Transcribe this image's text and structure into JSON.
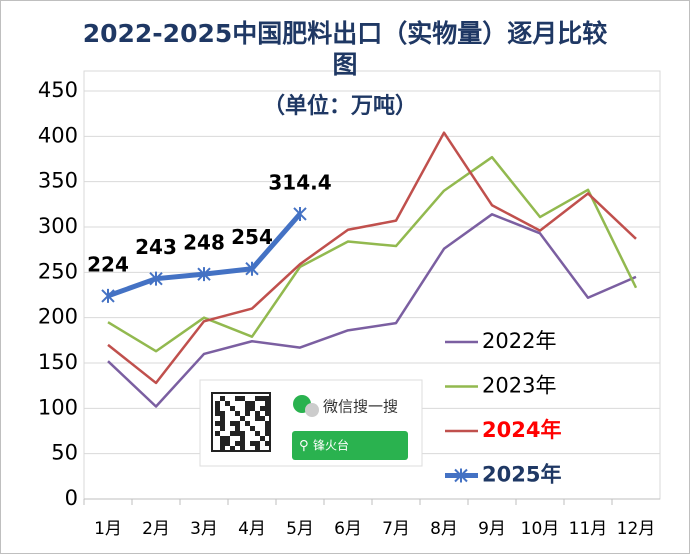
{
  "chart_data": {
    "type": "line",
    "title": "2022-2025中国肥料出口（实物量）逐月比较图",
    "subtitle": "（单位：万吨）",
    "categories": [
      "1月",
      "2月",
      "3月",
      "4月",
      "5月",
      "6月",
      "7月",
      "8月",
      "9月",
      "10月",
      "11月",
      "12月"
    ],
    "series": [
      {
        "name": "2022年",
        "color": "#7b5fa1",
        "values": [
          152,
          102,
          160,
          174,
          167,
          186,
          194,
          276,
          314,
          293,
          222,
          245
        ]
      },
      {
        "name": "2023年",
        "color": "#92b94f",
        "values": [
          195,
          163,
          200,
          179,
          256,
          284,
          279,
          340,
          377,
          311,
          341,
          233
        ]
      },
      {
        "name": "2024年",
        "color": "#c0504d",
        "values": [
          170,
          128,
          196,
          210,
          259,
          297,
          307,
          404,
          324,
          296,
          337,
          287
        ]
      },
      {
        "name": "2025年",
        "color": "#4472c4",
        "values": [
          224,
          243,
          248,
          254,
          314.4,
          null,
          null,
          null,
          null,
          null,
          null,
          null
        ]
      }
    ],
    "ylim": [
      0,
      450
    ],
    "yticks": [
      0,
      50,
      100,
      150,
      200,
      250,
      300,
      350,
      400,
      450
    ],
    "grid": true,
    "legend": "lower right",
    "watermark": {
      "label": "微信搜一搜",
      "search": "锋火台"
    }
  }
}
